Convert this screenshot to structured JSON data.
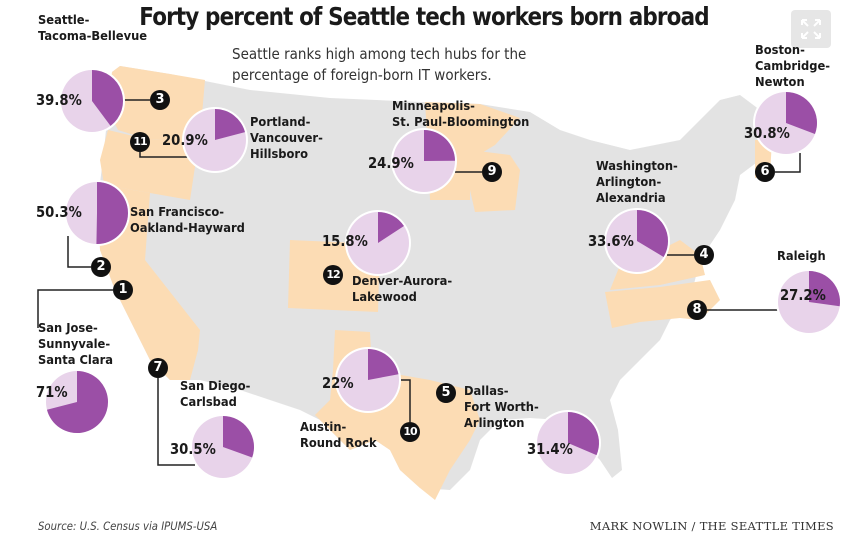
{
  "header": {
    "title": "Forty percent of Seattle tech workers born abroad",
    "subtitle_line1": "Seattle ranks high among tech hubs for the",
    "subtitle_line2": "percentage of foreign-born IT workers."
  },
  "footer": {
    "source": "Source: U.S. Census via IPUMS-USA",
    "credit": "MARK NOWLIN / THE SEATTLE TIMES"
  },
  "controls": {
    "expand_icon": "expand-arrows-icon"
  },
  "colors": {
    "foreign_born": "#9b4fa6",
    "remainder": "#e8d3ea",
    "highlighted_state": "#fcdcb4",
    "other_states": "#e3e3e3"
  },
  "chart_data": {
    "type": "pie",
    "title": "Forty percent of Seattle tech workers born abroad",
    "measure": "Percentage of foreign-born IT workers",
    "metros": [
      {
        "rank": 1,
        "name_lines": [
          "San Jose-",
          "Sunnyvale-",
          "Santa Clara"
        ],
        "value": 71,
        "label": "71%"
      },
      {
        "rank": 2,
        "name_lines": [
          "San Francisco-",
          "Oakland-Hayward"
        ],
        "value": 50.3,
        "label": "50.3%"
      },
      {
        "rank": 3,
        "name_lines": [
          "Seattle-",
          "Tacoma-Bellevue"
        ],
        "value": 39.8,
        "label": "39.8%"
      },
      {
        "rank": 4,
        "name_lines": [
          "Washington-",
          "Arlington-",
          "Alexandria"
        ],
        "value": 33.6,
        "label": "33.6%"
      },
      {
        "rank": 5,
        "name_lines": [
          "Dallas-",
          "Fort Worth-",
          "Arlington"
        ],
        "value": 31.4,
        "label": "31.4%"
      },
      {
        "rank": 6,
        "name_lines": [
          "Boston-",
          "Cambridge-",
          "Newton"
        ],
        "value": 30.8,
        "label": "30.8%"
      },
      {
        "rank": 7,
        "name_lines": [
          "San Diego-",
          "Carlsbad"
        ],
        "value": 30.5,
        "label": "30.5%"
      },
      {
        "rank": 8,
        "name_lines": [
          "Raleigh"
        ],
        "value": 27.2,
        "label": "27.2%"
      },
      {
        "rank": 9,
        "name_lines": [
          "Minneapolis-",
          "St. Paul-Bloomington"
        ],
        "value": 24.9,
        "label": "24.9%"
      },
      {
        "rank": 10,
        "name_lines": [
          "Austin-",
          "Round Rock"
        ],
        "value": 22,
        "label": "22%"
      },
      {
        "rank": 11,
        "name_lines": [
          "Portland-",
          "Vancouver-",
          "Hillsboro"
        ],
        "value": 20.9,
        "label": "20.9%"
      },
      {
        "rank": 12,
        "name_lines": [
          "Denver-Aurora-",
          "Lakewood"
        ],
        "value": 15.8,
        "label": "15.8%"
      }
    ]
  }
}
